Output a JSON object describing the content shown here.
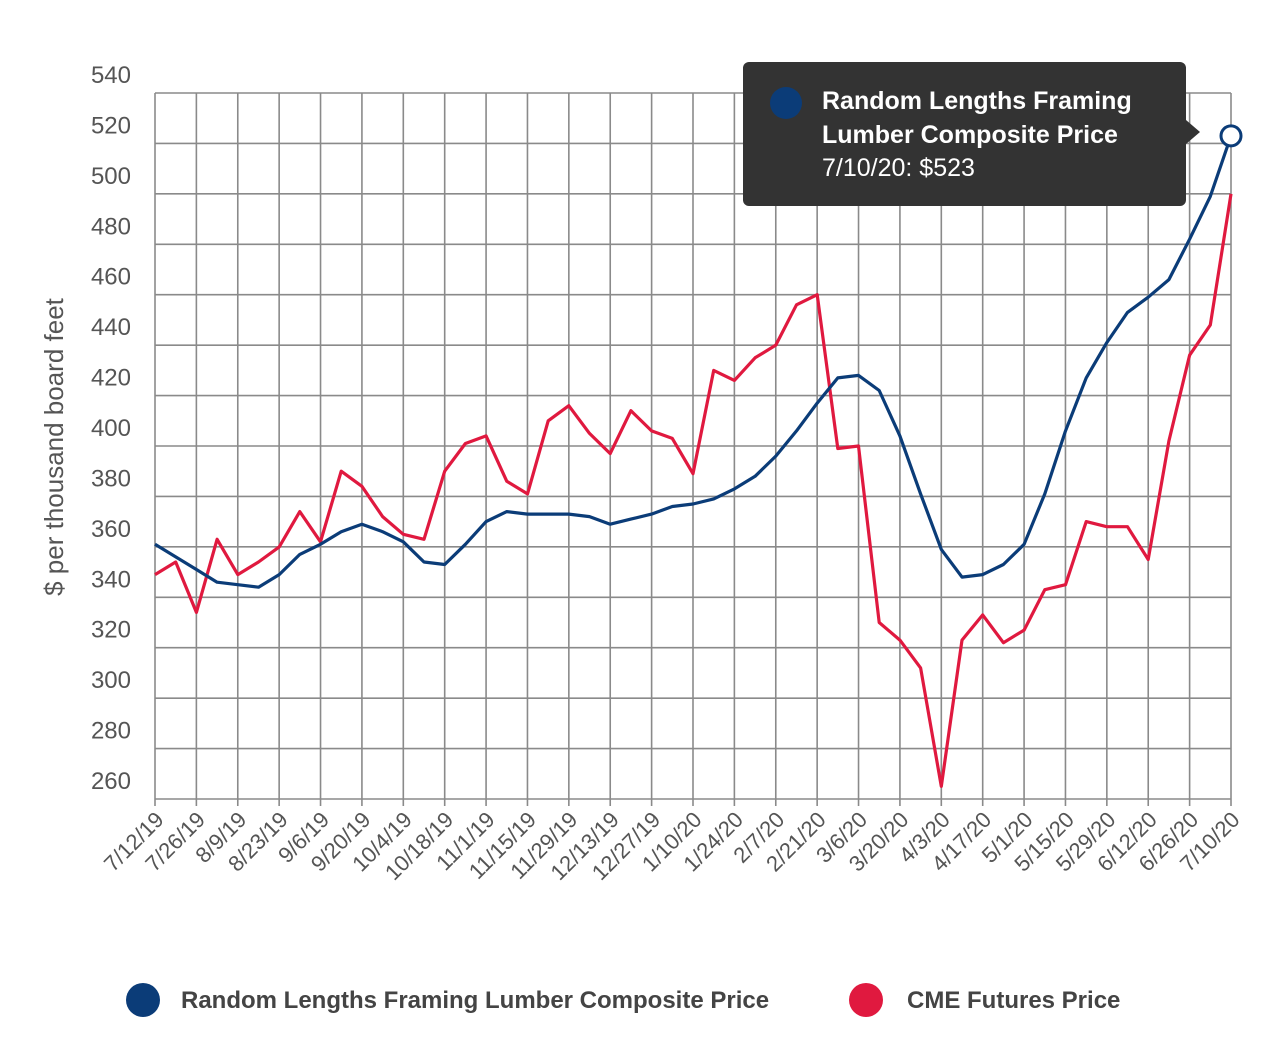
{
  "chart_data": {
    "type": "line",
    "title": "",
    "xlabel": "",
    "ylabel": "$ per thousand board feet",
    "ylim": [
      260,
      540
    ],
    "yticks": [
      260,
      280,
      300,
      320,
      340,
      360,
      380,
      400,
      420,
      440,
      460,
      480,
      500,
      520,
      540
    ],
    "grid": true,
    "legend_position": "bottom",
    "x": [
      "7/12/19",
      "7/19/19",
      "7/26/19",
      "8/2/19",
      "8/9/19",
      "8/16/19",
      "8/23/19",
      "8/30/19",
      "9/6/19",
      "9/13/19",
      "9/20/19",
      "9/27/19",
      "10/4/19",
      "10/11/19",
      "10/18/19",
      "10/25/19",
      "11/1/19",
      "11/8/19",
      "11/15/19",
      "11/22/19",
      "11/29/19",
      "12/6/19",
      "12/13/19",
      "12/20/19",
      "12/27/19",
      "1/3/20",
      "1/10/20",
      "1/17/20",
      "1/24/20",
      "1/31/20",
      "2/7/20",
      "2/14/20",
      "2/21/20",
      "2/28/20",
      "3/6/20",
      "3/13/20",
      "3/20/20",
      "3/27/20",
      "4/3/20",
      "4/10/20",
      "4/17/20",
      "4/24/20",
      "5/1/20",
      "5/8/20",
      "5/15/20",
      "5/22/20",
      "5/29/20",
      "6/5/20",
      "6/12/20",
      "6/19/20",
      "6/26/20",
      "7/3/20",
      "7/10/20"
    ],
    "xtick_labels": [
      "7/12/19",
      "7/26/19",
      "8/9/19",
      "8/23/19",
      "9/6/19",
      "9/20/19",
      "10/4/19",
      "10/18/19",
      "11/1/19",
      "11/15/19",
      "11/29/19",
      "12/13/19",
      "12/27/19",
      "1/10/20",
      "1/24/20",
      "2/7/20",
      "2/21/20",
      "3/6/20",
      "3/20/20",
      "4/3/20",
      "4/17/20",
      "5/1/20",
      "5/15/20",
      "5/29/20",
      "6/12/20",
      "6/26/20",
      "7/10/20"
    ],
    "series": [
      {
        "name": "Random Lengths Framing Lumber Composite Price",
        "color": "#0b3c78",
        "values": [
          361,
          356,
          351,
          346,
          345,
          344,
          349,
          357,
          361,
          366,
          369,
          366,
          362,
          354,
          353,
          361,
          370,
          374,
          373,
          373,
          373,
          372,
          369,
          371,
          373,
          376,
          377,
          379,
          383,
          388,
          396,
          406,
          417,
          427,
          428,
          422,
          404,
          381,
          359,
          348,
          349,
          353,
          361,
          381,
          406,
          427,
          441,
          453,
          459,
          466,
          482,
          499,
          523
        ]
      },
      {
        "name": "CME Futures Price",
        "color": "#e0193f",
        "values": [
          349,
          354,
          334,
          363,
          349,
          354,
          360,
          374,
          362,
          390,
          384,
          372,
          365,
          363,
          390,
          401,
          404,
          386,
          381,
          410,
          416,
          405,
          397,
          414,
          406,
          403,
          389,
          430,
          426,
          435,
          440,
          456,
          460,
          399,
          400,
          330,
          323,
          312,
          265,
          323,
          333,
          322,
          327,
          343,
          345,
          370,
          368,
          368,
          355,
          402,
          436,
          448,
          500
        ]
      }
    ],
    "tooltip": {
      "series_name": "Random Lengths Framing Lumber Composite Price",
      "title_line1": "Random Lengths Framing",
      "title_line2": "Lumber Composite Price",
      "value_text": "7/10/20: $523",
      "point_index": 52
    }
  }
}
